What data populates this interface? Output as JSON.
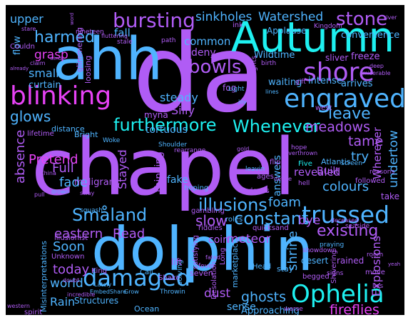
{
  "palette": {
    "background": "#000000",
    "frame": "#ffffff",
    "cyan": "#1ef0f0",
    "blue": "#4fb4ff",
    "violet": "#b05cf5",
    "magenta": "#e642f5"
  },
  "words": {
    "chapel": "chapel",
    "da": "da",
    "dolphin": "dolphin",
    "ahh": "ahh",
    "autumn": "Autumn",
    "blinking": "blinking",
    "engraved": "engraved",
    "furthermore": "furthermore",
    "whenever_h": "Whenever",
    "bursting": "bursting",
    "shore": "shore",
    "stone": "stone",
    "sinkholes": "sinkholes",
    "watershed": "Watershed",
    "harmed": "harmed",
    "bowls": "bowls",
    "damaged": "damaged",
    "ophelia": "Ophelia",
    "trussed": "trussed",
    "poolside": "poolside",
    "smaland": "Småland",
    "illusions": "illusions",
    "glows": "glows",
    "grasp": "grasp",
    "common": "common",
    "fall": "fall",
    "deny": "deny",
    "steady": "steady",
    "silly": "Silly",
    "leave": "leave",
    "meadows": "meadows",
    "revealed": "revealed",
    "tame": "tame",
    "pretend": "Pretend",
    "fade": "fade",
    "full": "Full",
    "absence": "absence",
    "stayed": "Stayed",
    "constant": "constant",
    "existing": "existing",
    "bye": "bye",
    "colours": "colours",
    "fireflies": "fireflies",
    "ghosts": "ghosts",
    "dust": "dust",
    "sense": "sense",
    "approaching": "Approaching",
    "rain": "Rain",
    "world": "world",
    "today": "today",
    "soon": "Soon",
    "eastern": "eastern",
    "read": "Read",
    "slow": "slow",
    "coin": "coin",
    "meteor": "meteor",
    "foam": "foam",
    "shrine": "shrine",
    "undertow": "undertow",
    "wherever": "Wherever",
    "explosions": "Explosions",
    "small": "small",
    "curtain": "curtain",
    "upper": "upper",
    "flow": "flow",
    "ink": "ink",
    "applause": "Applause",
    "convenience": "convenience",
    "freeze": "freeze",
    "sliver": "sliver",
    "intense": "intense",
    "arrives": "arrives",
    "wildtime": "Wildtime",
    "waiting": "waiting",
    "fog": "fog",
    "west": "west",
    "atlantis": "Atlantis",
    "try": "try",
    "built": "Built",
    "answers": "answers",
    "thinking": "thinking",
    "fake": "fake",
    "milligram": "milligram",
    "tortuous": "tortuous",
    "myna": "myna",
    "bright": "Bright",
    "woke": "Woke",
    "ages": "ages",
    "doves": "doves",
    "hoping": "hoping",
    "five": "Five",
    "flip": "flip",
    "take": "take",
    "followed": "followed",
    "rained": "rained",
    "desert": "desert",
    "begged": "begged",
    "roles": "roles",
    "riddles": "riddles",
    "quicksand": "quicksand",
    "gambling": "gambling",
    "illusionist": "illusionist",
    "misinterpretations": "Misinterpretations",
    "unknown": "Unknown",
    "structures": "Structures",
    "ocean": "Ocean",
    "shake": "Shake",
    "call": "Call",
    "king": "King",
    "seven": "seven",
    "solving": "solving",
    "lift": "lift",
    "marketplace": "marketplace",
    "desolation": "Desolation",
    "stay": "stay",
    "head": "Head",
    "long": "Long",
    "fever": "fever",
    "satisfying": "satisfying",
    "shivering": "Shivering",
    "signs": "signs",
    "move": "move",
    "room": "room",
    "lies": "lies",
    "worse": "worse",
    "showdown": "showdown",
    "praying": "praying",
    "seaside": "seaside",
    "deceased": "deceased",
    "squash": "squash",
    "drown": "drown",
    "distance": "distance",
    "lifetime": "lifetime",
    "nineteen": "nineteen",
    "loosing": "loosing",
    "glimmering": "glimmering",
    "couldn": "Couldn",
    "heights": "heights",
    "birth": "birth",
    "gift": "gift",
    "hope": "hope",
    "joy": "joy",
    "light": "Light",
    "lines": "lines",
    "miserable": "miserable",
    "deep": "deep",
    "kingdom": "Kingdom",
    "stale": "stale",
    "path": "path",
    "claim": "claim",
    "word": "word",
    "river": "river",
    "china": "China",
    "pull": "pull",
    "lately": "Lately",
    "throwin": "Throwin",
    "embedshare": "EmbedShare",
    "grow": "Grow",
    "spirit": "spirit",
    "incredible": "incredible",
    "doubt": "doubt",
    "western": "western",
    "entertainment": "entertainment",
    "hell": "hell",
    "screen": "screen",
    "reasons": "reasons",
    "shoulder": "Shoulder",
    "rearrange": "rearrange",
    "gold": "gold",
    "fated": "fated",
    "overthrown": "Overthrown",
    "define": "define",
    "leavin": "leavin",
    "sway": "sway",
    "fluttering": "fluttering",
    "already": "already",
    "winds": "winds",
    "stare": "stare",
    "yeah": "yeah"
  }
}
